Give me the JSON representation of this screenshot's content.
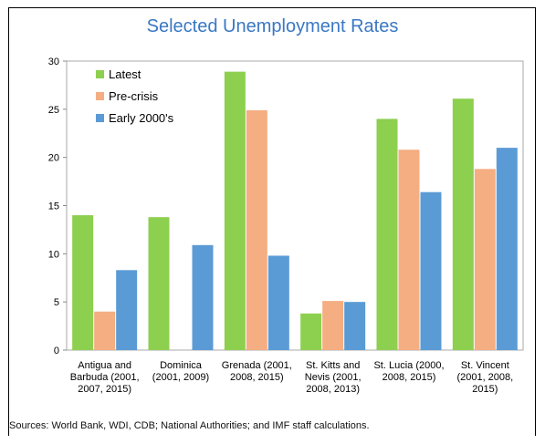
{
  "chart_data": {
    "type": "bar",
    "title": "Selected Unemployment Rates",
    "xlabel": "",
    "ylabel": "",
    "ylim": [
      0,
      30
    ],
    "yticks": [
      0,
      5,
      10,
      15,
      20,
      25,
      30
    ],
    "grid": false,
    "legend_position": "top-left",
    "categories": [
      [
        "Antigua and",
        "Barbuda (2001,",
        "2007, 2015)"
      ],
      [
        "Dominica",
        "(2001, 2009)"
      ],
      [
        "Grenada (2001,",
        "2008, 2015)"
      ],
      [
        "St. Kitts and",
        "Nevis (2001,",
        "2008, 2013)"
      ],
      [
        "St. Lucia (2000,",
        "2008, 2015)"
      ],
      [
        "St. Vincent",
        "(2001, 2008,",
        "2015)"
      ]
    ],
    "series": [
      {
        "name": "Latest",
        "color": "#8dcf4f",
        "values": [
          14.0,
          13.8,
          28.9,
          3.8,
          24.0,
          26.1
        ]
      },
      {
        "name": "Pre-crisis",
        "color": "#f4ae82",
        "values": [
          4.0,
          null,
          24.9,
          5.1,
          20.8,
          18.8
        ]
      },
      {
        "name": "Early 2000's",
        "color": "#5b9bd5",
        "values": [
          8.3,
          10.9,
          9.8,
          5.0,
          16.4,
          21.0
        ]
      }
    ]
  },
  "source": "Sources: World Bank, WDI, CDB; National Authorities; and IMF staff calculations."
}
